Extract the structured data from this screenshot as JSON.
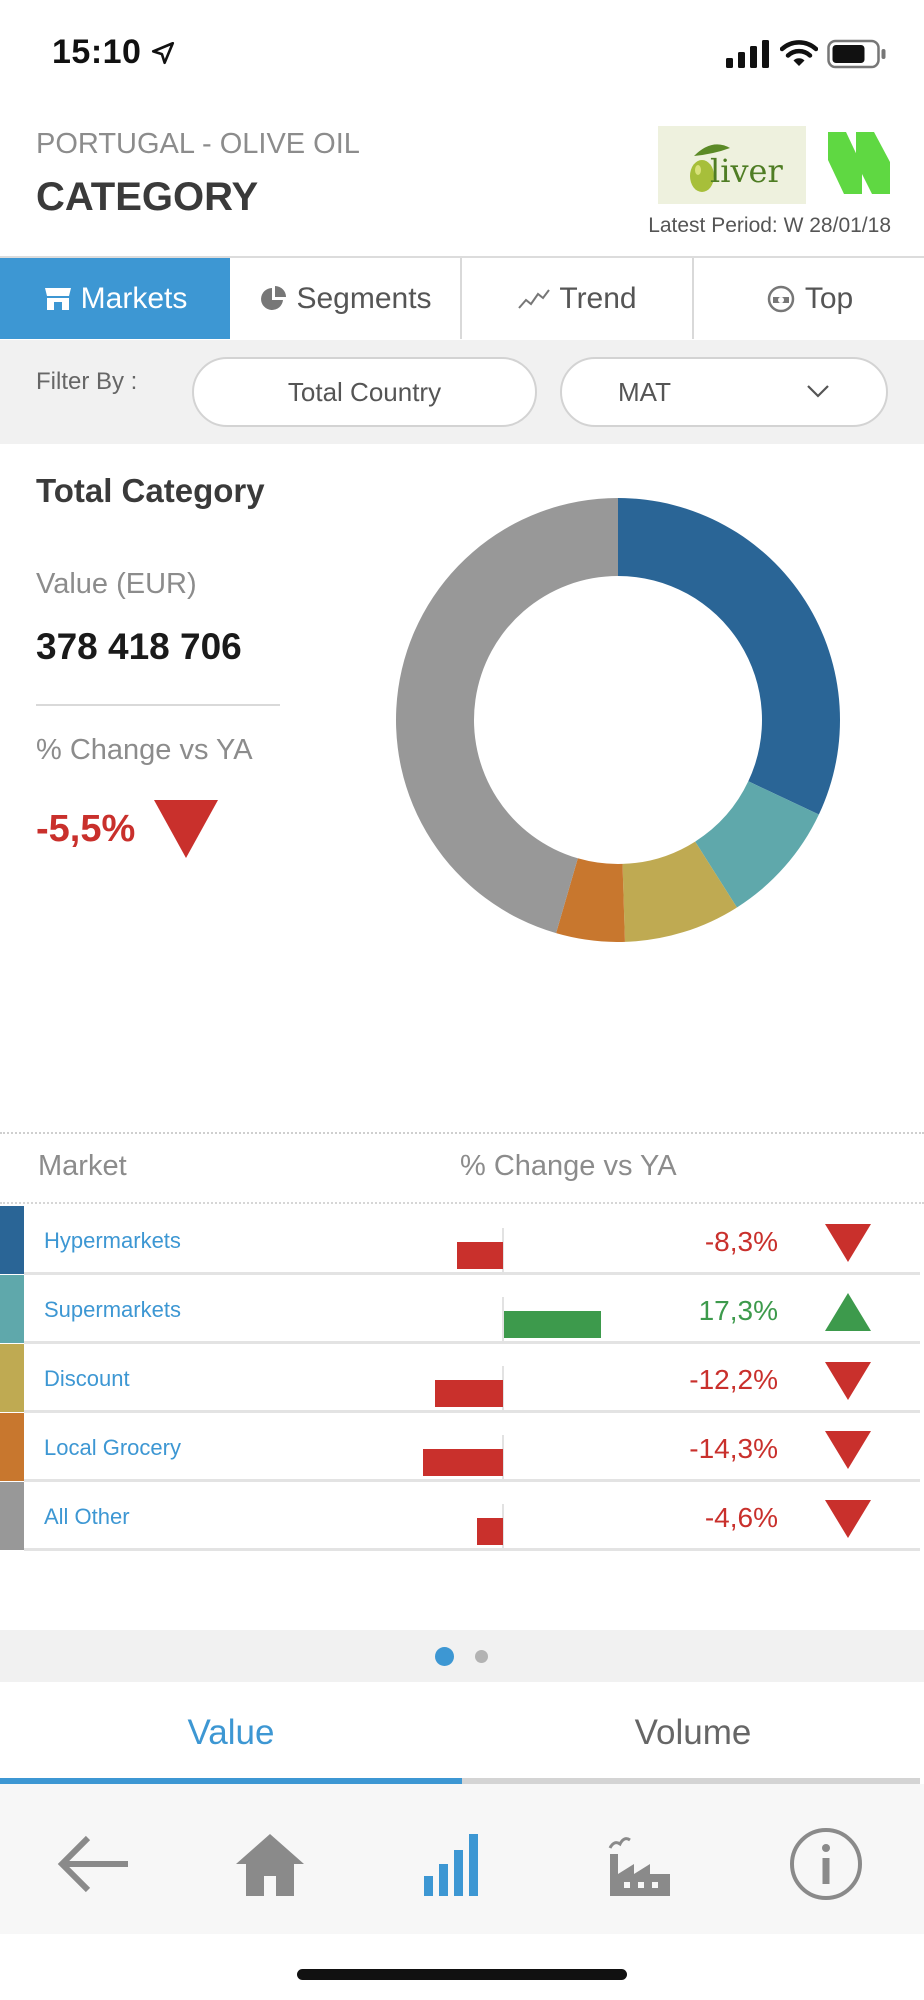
{
  "status_bar": {
    "time": "15:10"
  },
  "header": {
    "subtitle": "PORTUGAL - OLIVE OIL",
    "title": "CATEGORY",
    "logo_text": "liver",
    "latest_period": "Latest Period: W 28/01/18"
  },
  "tabs": [
    {
      "label": "Markets",
      "icon": "store-icon",
      "active": true
    },
    {
      "label": "Segments",
      "icon": "pie-icon",
      "active": false
    },
    {
      "label": "Trend",
      "icon": "trend-icon",
      "active": false
    },
    {
      "label": "Top",
      "icon": "top-icon",
      "active": false
    }
  ],
  "filter": {
    "label": "Filter By :",
    "country": "Total Country",
    "period": "MAT"
  },
  "summary": {
    "title": "Total Category",
    "value_label": "Value (EUR)",
    "value": "378 418 706",
    "change_label": "% Change vs YA",
    "change": "-5,5%",
    "change_direction": "down"
  },
  "chart_data": {
    "type": "pie",
    "donut": true,
    "categories": [
      "Hypermarkets",
      "Supermarkets",
      "Discount",
      "Local Grocery",
      "All Other"
    ],
    "values": [
      32,
      9,
      8.5,
      5,
      45.5
    ],
    "colors": [
      "#2a6596",
      "#5fa8ab",
      "#bfaa52",
      "#c8772e",
      "#989898"
    ],
    "start_angle_deg": 0
  },
  "table": {
    "col_market": "Market",
    "col_change": "% Change vs YA",
    "rows": [
      {
        "name": "Hypermarkets",
        "change": -8.3,
        "change_label": "-8,3%",
        "color": "#2a6596",
        "direction": "down"
      },
      {
        "name": "Supermarkets",
        "change": 17.3,
        "change_label": "17,3%",
        "color": "#5fa8ab",
        "direction": "up"
      },
      {
        "name": "Discount",
        "change": -12.2,
        "change_label": "-12,2%",
        "color": "#bfaa52",
        "direction": "down"
      },
      {
        "name": "Local Grocery",
        "change": -14.3,
        "change_label": "-14,3%",
        "color": "#c8772e",
        "direction": "down"
      },
      {
        "name": "All Other",
        "change": -4.6,
        "change_label": "-4,6%",
        "color": "#989898",
        "direction": "down"
      }
    ]
  },
  "pager": {
    "pages": 2,
    "current": 1
  },
  "segments": {
    "value_label": "Value",
    "volume_label": "Volume",
    "active": "value"
  },
  "bottom_nav": [
    "back-arrow-icon",
    "home-icon",
    "bar-chart-icon",
    "factory-icon",
    "info-icon"
  ],
  "colors": {
    "accent": "#3d97d3",
    "negative": "#c9302c",
    "positive": "#3d9a4c"
  }
}
